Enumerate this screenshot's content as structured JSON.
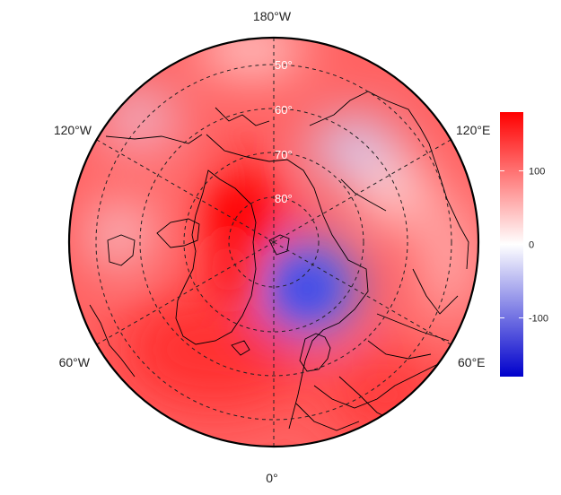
{
  "map": {
    "projection": "north-polar-stereographic",
    "colormap": {
      "low_color": "#0000cc",
      "mid_color": "#ffffff",
      "high_color": "#ff0000"
    },
    "longitude_labels": [
      "180°W",
      "120°E",
      "60°E",
      "0°",
      "60°W",
      "120°W"
    ],
    "latitude_labels": [
      "50°",
      "60°",
      "70°",
      "80°"
    ],
    "colorbar": {
      "range": [
        -180,
        180
      ],
      "ticks": [
        {
          "value": 100,
          "label": "100"
        },
        {
          "value": 0,
          "label": "0"
        },
        {
          "value": -100,
          "label": "-100"
        }
      ]
    }
  }
}
